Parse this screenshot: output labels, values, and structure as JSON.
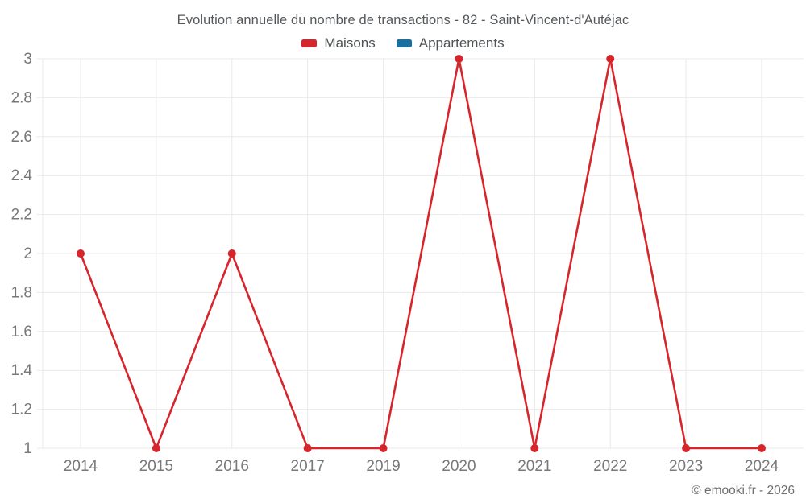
{
  "header": {
    "title": "Evolution annuelle du nombre de transactions - 82 - Saint-Vincent-d'Autéjac"
  },
  "legend": {
    "items": [
      {
        "label": "Maisons",
        "color": "#d6262c"
      },
      {
        "label": "Appartements",
        "color": "#1670a2"
      }
    ]
  },
  "chart_data": {
    "type": "line",
    "title": "Evolution annuelle du nombre de transactions - 82 - Saint-Vincent-d'Autéjac",
    "categories": [
      "2014",
      "2015",
      "2016",
      "2017",
      "2019",
      "2020",
      "2021",
      "2022",
      "2023",
      "2024"
    ],
    "series": [
      {
        "name": "Maisons",
        "color": "#d6262c",
        "values": [
          2,
          1,
          2,
          1,
          1,
          3,
          1,
          3,
          1,
          1
        ]
      },
      {
        "name": "Appartements",
        "color": "#1670a2",
        "values": []
      }
    ],
    "xlabel": "",
    "ylabel": "",
    "ylim": [
      1,
      3
    ],
    "yticks": [
      1,
      1.2,
      1.4,
      1.6,
      1.8,
      2,
      2.2,
      2.4,
      2.6,
      2.8,
      3
    ],
    "grid": true,
    "legend_position": "top",
    "marker": "circle"
  },
  "footer": {
    "copyright": "© emooki.fr - 2026"
  },
  "colors": {
    "grid": "#e9e9e9",
    "axis_text": "#77787a",
    "background": "#ffffff"
  }
}
